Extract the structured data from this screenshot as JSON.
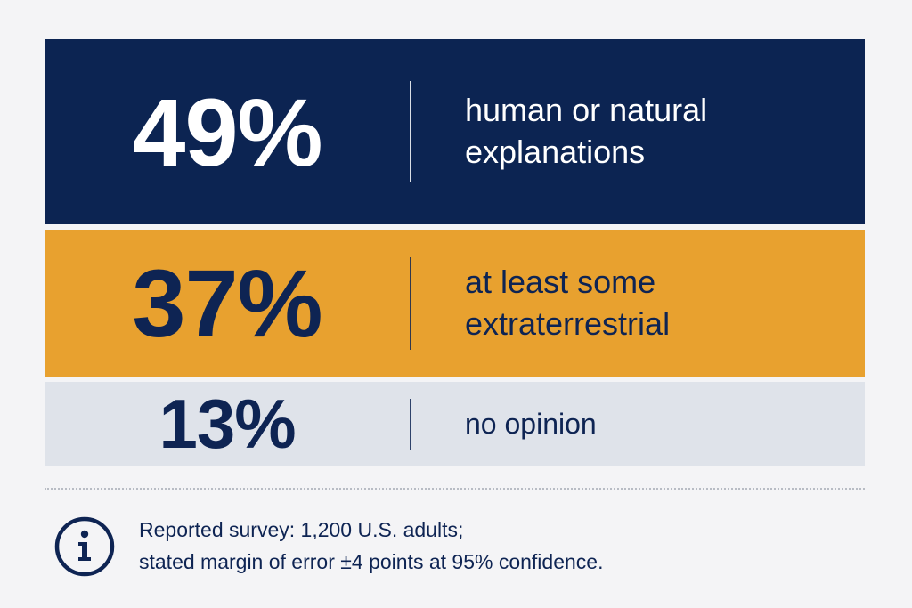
{
  "chart_data": {
    "type": "table",
    "rows": [
      {
        "value": 49,
        "display": "49%",
        "label": "human or natural\nexplanations",
        "color": "#0c2452",
        "text_color": "#ffffff"
      },
      {
        "value": 37,
        "display": "37%",
        "label": "at least some\nextraterrestrial",
        "color": "#e8a12f",
        "text_color": "#0e2453"
      },
      {
        "value": 13,
        "display": "13%",
        "label": "no opinion",
        "color": "#dfe3ea",
        "text_color": "#0e2453"
      }
    ]
  },
  "footnote": {
    "icon": "info-icon",
    "text": "Reported survey: 1,200 U.S. adults;\nstated margin of error ±4 points at 95% confidence."
  }
}
